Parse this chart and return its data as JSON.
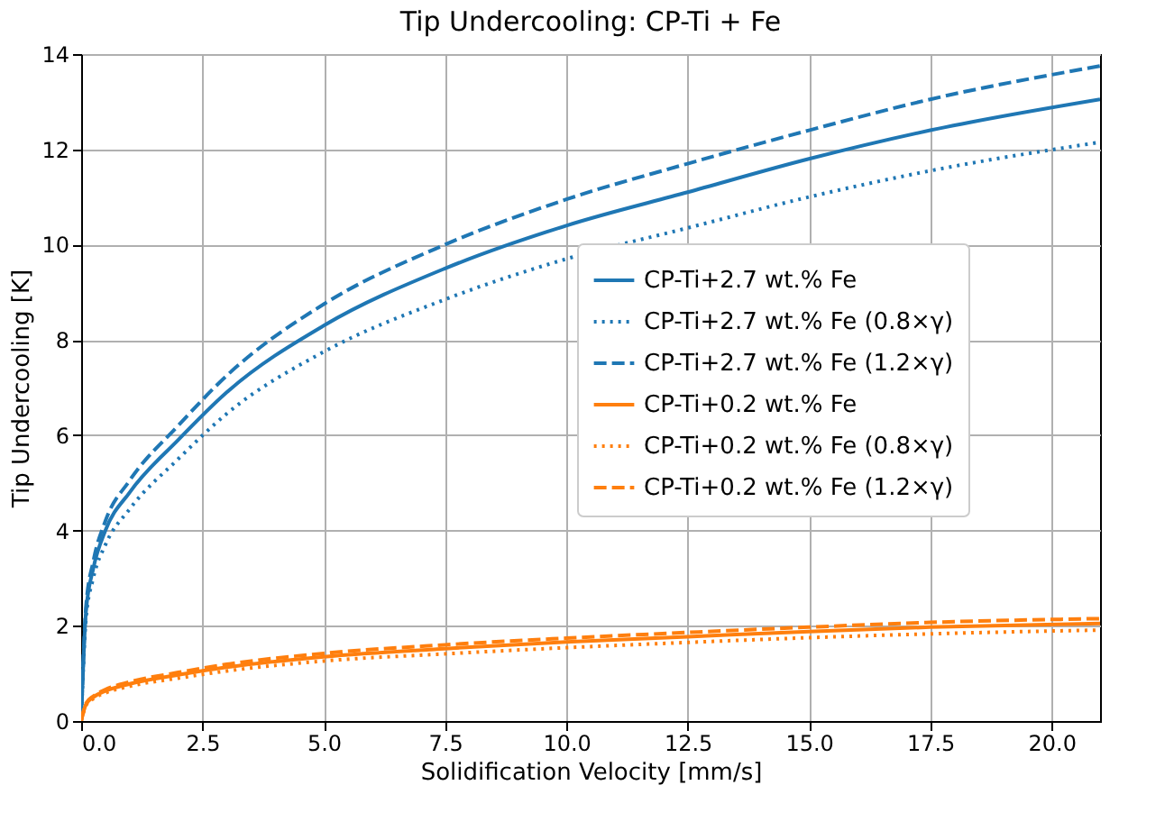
{
  "chart_data": {
    "type": "line",
    "title": "Tip Undercooling: CP-Ti + Fe",
    "xlabel": "Solidification Velocity [mm/s]",
    "ylabel": "Tip Undercooling [K]",
    "x": [
      0,
      0.1,
      0.25,
      0.5,
      1,
      2,
      3,
      5,
      7.5,
      10,
      12.5,
      15,
      17.5,
      21
    ],
    "series": [
      {
        "name": "CP-Ti+2.7 wt.% Fe",
        "color": "#1f77b4",
        "line_style": "solid",
        "values": [
          0,
          2.3,
          3.2,
          4.0,
          4.8,
          5.9,
          6.9,
          8.3,
          9.5,
          10.4,
          11.1,
          11.8,
          12.4,
          13.05
        ]
      },
      {
        "name": "CP-Ti+2.7 wt.% Fe (0.8×γ)",
        "color": "#1f77b4",
        "line_style": "dotted",
        "values": [
          0,
          2.15,
          3.0,
          3.7,
          4.45,
          5.5,
          6.45,
          7.75,
          8.85,
          9.7,
          10.35,
          11.0,
          11.55,
          12.15
        ]
      },
      {
        "name": "CP-Ti+2.7 wt.% Fe (1.2×γ)",
        "color": "#1f77b4",
        "line_style": "dashed",
        "values": [
          0,
          2.4,
          3.35,
          4.2,
          5.05,
          6.2,
          7.25,
          8.75,
          10.0,
          10.95,
          11.7,
          12.4,
          13.05,
          13.75
        ]
      },
      {
        "name": "CP-Ti+0.2 wt.% Fe",
        "color": "#ff7f0e",
        "line_style": "solid",
        "values": [
          0,
          0.35,
          0.5,
          0.63,
          0.78,
          0.97,
          1.13,
          1.35,
          1.52,
          1.66,
          1.77,
          1.88,
          1.97,
          2.05
        ]
      },
      {
        "name": "CP-Ti+0.2 wt.% Fe (0.8×γ)",
        "color": "#ff7f0e",
        "line_style": "dotted",
        "values": [
          0,
          0.33,
          0.47,
          0.59,
          0.73,
          0.9,
          1.05,
          1.26,
          1.41,
          1.54,
          1.65,
          1.75,
          1.83,
          1.91
        ]
      },
      {
        "name": "CP-Ti+0.2 wt.% Fe (1.2×γ)",
        "color": "#ff7f0e",
        "line_style": "dashed",
        "values": [
          0,
          0.37,
          0.52,
          0.66,
          0.82,
          1.02,
          1.19,
          1.42,
          1.6,
          1.74,
          1.86,
          1.97,
          2.07,
          2.15
        ]
      }
    ],
    "xlim": [
      0,
      21
    ],
    "xticks": [
      {
        "value": 0,
        "label": "0.0"
      },
      {
        "value": 2.5,
        "label": "2.5"
      },
      {
        "value": 5,
        "label": "5.0"
      },
      {
        "value": 7.5,
        "label": "7.5"
      },
      {
        "value": 10,
        "label": "10.0"
      },
      {
        "value": 12.5,
        "label": "12.5"
      },
      {
        "value": 15,
        "label": "15.0"
      },
      {
        "value": 17.5,
        "label": "17.5"
      },
      {
        "value": 20,
        "label": "20.0"
      }
    ],
    "ylim": [
      0,
      14
    ],
    "yticks": [
      0,
      2,
      4,
      6,
      8,
      10,
      12,
      14
    ],
    "grid": true,
    "legend": "center right"
  }
}
